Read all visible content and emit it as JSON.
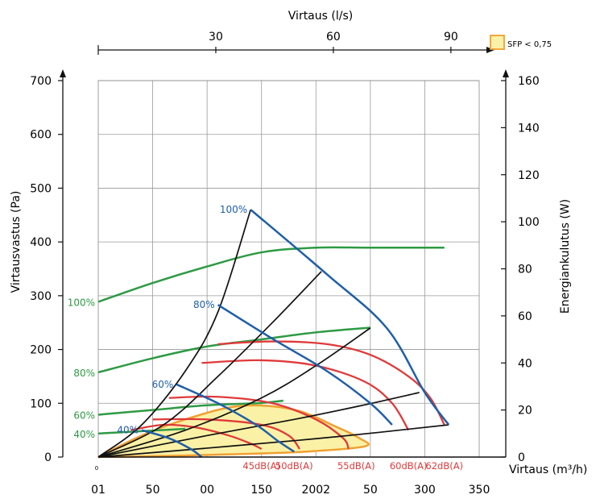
{
  "chart_data": {
    "type": "line",
    "title": "",
    "top_axis": {
      "label": "Virtaus (l/s)",
      "ticks": [
        "30",
        "60",
        "90"
      ]
    },
    "x_axis": {
      "label": "Virtaus (m³/h)",
      "range": [
        0,
        350
      ],
      "ticks": [
        "01",
        "50",
        "00",
        "150",
        "2002",
        "50",
        "300",
        "350"
      ],
      "origin_label": "0"
    },
    "y_left": {
      "label": "Virtausvastus (Pa)",
      "range": [
        0,
        700
      ],
      "ticks": [
        "0",
        "100",
        "200",
        "300",
        "400",
        "500",
        "600",
        "700"
      ]
    },
    "y_right": {
      "label": "Energiankulutus (W)",
      "range": [
        0,
        160
      ],
      "ticks": [
        "0",
        "20",
        "40",
        "60",
        "80",
        "100",
        "120",
        "140",
        "160"
      ]
    },
    "legend": {
      "label": "SFP < 0,75",
      "color": "#fbf1a6",
      "border": "#f0a030",
      "placement": "top-right"
    },
    "colors": {
      "pressure": "#1f5fa8",
      "power": "#2e9a44",
      "sound": "#e03a3a",
      "system": "#111111",
      "sfp_fill": "#fbf1a6",
      "sfp_edge": "#f0a030"
    },
    "pressure_curves": [
      {
        "label": "100%",
        "points": [
          [
            140,
            460
          ],
          [
            210,
            340
          ],
          [
            265,
            240
          ],
          [
            300,
            120
          ],
          [
            322,
            60
          ]
        ]
      },
      {
        "label": "80%",
        "points": [
          [
            110,
            283
          ],
          [
            160,
            220
          ],
          [
            210,
            160
          ],
          [
            250,
            100
          ],
          [
            270,
            60
          ]
        ]
      },
      {
        "label": "60%",
        "points": [
          [
            72,
            135
          ],
          [
            110,
            100
          ],
          [
            145,
            60
          ],
          [
            165,
            30
          ],
          [
            180,
            10
          ]
        ]
      },
      {
        "label": "40%",
        "points": [
          [
            40,
            50
          ],
          [
            65,
            35
          ],
          [
            85,
            15
          ],
          [
            95,
            0
          ]
        ]
      }
    ],
    "power_curves": [
      {
        "label": "100%",
        "points": [
          [
            0,
            66
          ],
          [
            50,
            74
          ],
          [
            100,
            81
          ],
          [
            150,
            87
          ],
          [
            200,
            89
          ],
          [
            250,
            89
          ],
          [
            318,
            89
          ]
        ]
      },
      {
        "label": "80%",
        "points": [
          [
            0,
            36
          ],
          [
            50,
            42
          ],
          [
            100,
            47
          ],
          [
            150,
            50
          ],
          [
            200,
            53
          ],
          [
            250,
            55
          ]
        ]
      },
      {
        "label": "60%",
        "points": [
          [
            0,
            18
          ],
          [
            50,
            20
          ],
          [
            100,
            22
          ],
          [
            150,
            23
          ],
          [
            170,
            24
          ]
        ]
      },
      {
        "label": "40%",
        "points": [
          [
            0,
            10
          ],
          [
            40,
            11
          ],
          [
            80,
            12
          ]
        ]
      }
    ],
    "system_curves": [
      {
        "points": [
          [
            0,
            0
          ],
          [
            40,
            60
          ],
          [
            80,
            160
          ],
          [
            110,
            270
          ],
          [
            140,
            460
          ]
        ]
      },
      {
        "points": [
          [
            0,
            0
          ],
          [
            60,
            60
          ],
          [
            110,
            150
          ],
          [
            160,
            250
          ],
          [
            205,
            345
          ]
        ]
      },
      {
        "points": [
          [
            0,
            0
          ],
          [
            80,
            50
          ],
          [
            150,
            110
          ],
          [
            200,
            170
          ],
          [
            250,
            240
          ]
        ]
      },
      {
        "points": [
          [
            0,
            0
          ],
          [
            100,
            40
          ],
          [
            180,
            70
          ],
          [
            240,
            95
          ],
          [
            295,
            120
          ]
        ]
      },
      {
        "points": [
          [
            0,
            0
          ],
          [
            120,
            20
          ],
          [
            220,
            38
          ],
          [
            322,
            60
          ]
        ]
      }
    ],
    "sound_curves": [
      {
        "label": "45dB(A)",
        "points": [
          [
            30,
            50
          ],
          [
            60,
            60
          ],
          [
            90,
            55
          ],
          [
            120,
            40
          ],
          [
            140,
            25
          ],
          [
            150,
            15
          ]
        ]
      },
      {
        "label": "50dB(A)",
        "points": [
          [
            50,
            70
          ],
          [
            100,
            70
          ],
          [
            150,
            60
          ],
          [
            175,
            40
          ],
          [
            185,
            15
          ]
        ]
      },
      {
        "label": "55dB(A)",
        "points": [
          [
            65,
            110
          ],
          [
            110,
            112
          ],
          [
            160,
            100
          ],
          [
            200,
            70
          ],
          [
            225,
            35
          ],
          [
            230,
            15
          ]
        ]
      },
      {
        "label": "60dB(A)",
        "points": [
          [
            95,
            175
          ],
          [
            150,
            180
          ],
          [
            200,
            170
          ],
          [
            245,
            140
          ],
          [
            270,
            100
          ],
          [
            285,
            50
          ]
        ]
      },
      {
        "label": "62dB(A)",
        "points": [
          [
            110,
            210
          ],
          [
            160,
            215
          ],
          [
            210,
            210
          ],
          [
            250,
            190
          ],
          [
            285,
            150
          ],
          [
            305,
            110
          ],
          [
            318,
            60
          ]
        ]
      }
    ],
    "sfp_region": {
      "label": "SFP < 0,75",
      "points": [
        [
          0,
          0
        ],
        [
          40,
          40
        ],
        [
          80,
          70
        ],
        [
          130,
          95
        ],
        [
          180,
          88
        ],
        [
          220,
          55
        ],
        [
          240,
          35
        ],
        [
          245,
          20
        ],
        [
          190,
          10
        ],
        [
          120,
          5
        ],
        [
          60,
          2
        ],
        [
          0,
          0
        ]
      ]
    },
    "grid": true
  }
}
